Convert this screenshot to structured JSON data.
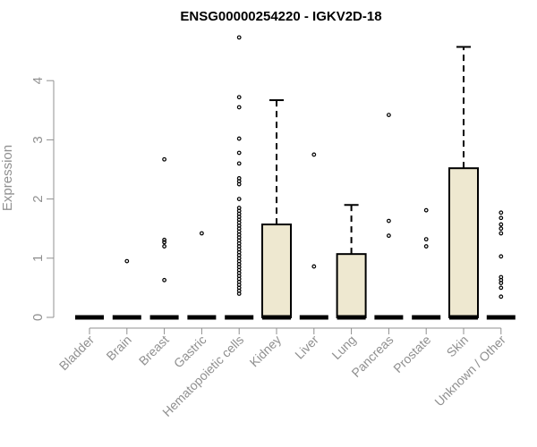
{
  "chart_data": {
    "type": "boxplot",
    "title": "ENSG00000254220 - IGKV2D-18",
    "xlabel": "",
    "ylabel": "Expression",
    "ylim": [
      0,
      4.8
    ],
    "yticks": [
      0,
      1,
      2,
      3,
      4
    ],
    "grid": false,
    "colors": {
      "box_fill": "#EEE8D0",
      "stroke": "#000000",
      "axis": "#909090"
    },
    "categories": [
      "Bladder",
      "Brain",
      "Breast",
      "Gastric",
      "Hematopoietic cells",
      "Kidney",
      "Liver",
      "Lung",
      "Pancreas",
      "Prostate",
      "Skin",
      "Unknown / Other"
    ],
    "boxes": [
      {
        "category": "Bladder",
        "q1": 0,
        "median": 0,
        "q3": 0,
        "whisker_low": 0,
        "whisker_high": 0,
        "outliers": []
      },
      {
        "category": "Brain",
        "q1": 0,
        "median": 0,
        "q3": 0,
        "whisker_low": 0,
        "whisker_high": 0,
        "outliers": [
          0.95
        ]
      },
      {
        "category": "Breast",
        "q1": 0,
        "median": 0,
        "q3": 0,
        "whisker_low": 0,
        "whisker_high": 0,
        "outliers": [
          0.63,
          1.2,
          1.27,
          1.31,
          2.67
        ]
      },
      {
        "category": "Gastric",
        "q1": 0,
        "median": 0,
        "q3": 0,
        "whisker_low": 0,
        "whisker_high": 0,
        "outliers": [
          1.42
        ]
      },
      {
        "category": "Hematopoietic cells",
        "q1": 0,
        "median": 0,
        "q3": 0,
        "whisker_low": 0,
        "whisker_high": 0,
        "outliers": [
          0.4,
          0.45,
          0.5,
          0.55,
          0.6,
          0.65,
          0.7,
          0.75,
          0.8,
          0.85,
          0.9,
          0.95,
          1.0,
          1.05,
          1.1,
          1.15,
          1.2,
          1.25,
          1.3,
          1.35,
          1.4,
          1.45,
          1.5,
          1.55,
          1.6,
          1.65,
          1.7,
          1.75,
          1.8,
          1.85,
          2.0,
          2.25,
          2.3,
          2.35,
          2.6,
          2.78,
          3.02,
          3.55,
          3.72,
          4.73
        ]
      },
      {
        "category": "Kidney",
        "q1": 0,
        "median": 0,
        "q3": 1.57,
        "whisker_low": 0,
        "whisker_high": 3.67,
        "outliers": []
      },
      {
        "category": "Liver",
        "q1": 0,
        "median": 0,
        "q3": 0,
        "whisker_low": 0,
        "whisker_high": 0,
        "outliers": [
          0.86,
          2.75
        ]
      },
      {
        "category": "Lung",
        "q1": 0,
        "median": 0,
        "q3": 1.07,
        "whisker_low": 0,
        "whisker_high": 1.9,
        "outliers": []
      },
      {
        "category": "Pancreas",
        "q1": 0,
        "median": 0,
        "q3": 0,
        "whisker_low": 0,
        "whisker_high": 0,
        "outliers": [
          1.38,
          1.63,
          3.42
        ]
      },
      {
        "category": "Prostate",
        "q1": 0,
        "median": 0,
        "q3": 0,
        "whisker_low": 0,
        "whisker_high": 0,
        "outliers": [
          1.2,
          1.32,
          1.81
        ]
      },
      {
        "category": "Skin",
        "q1": 0,
        "median": 0,
        "q3": 2.52,
        "whisker_low": 0,
        "whisker_high": 4.57,
        "outliers": []
      },
      {
        "category": "Unknown / Other",
        "q1": 0,
        "median": 0,
        "q3": 0,
        "whisker_low": 0,
        "whisker_high": 0,
        "outliers": [
          0.35,
          0.5,
          0.58,
          0.63,
          0.68,
          1.03,
          1.42,
          1.5,
          1.57,
          1.68,
          1.77
        ]
      }
    ]
  }
}
